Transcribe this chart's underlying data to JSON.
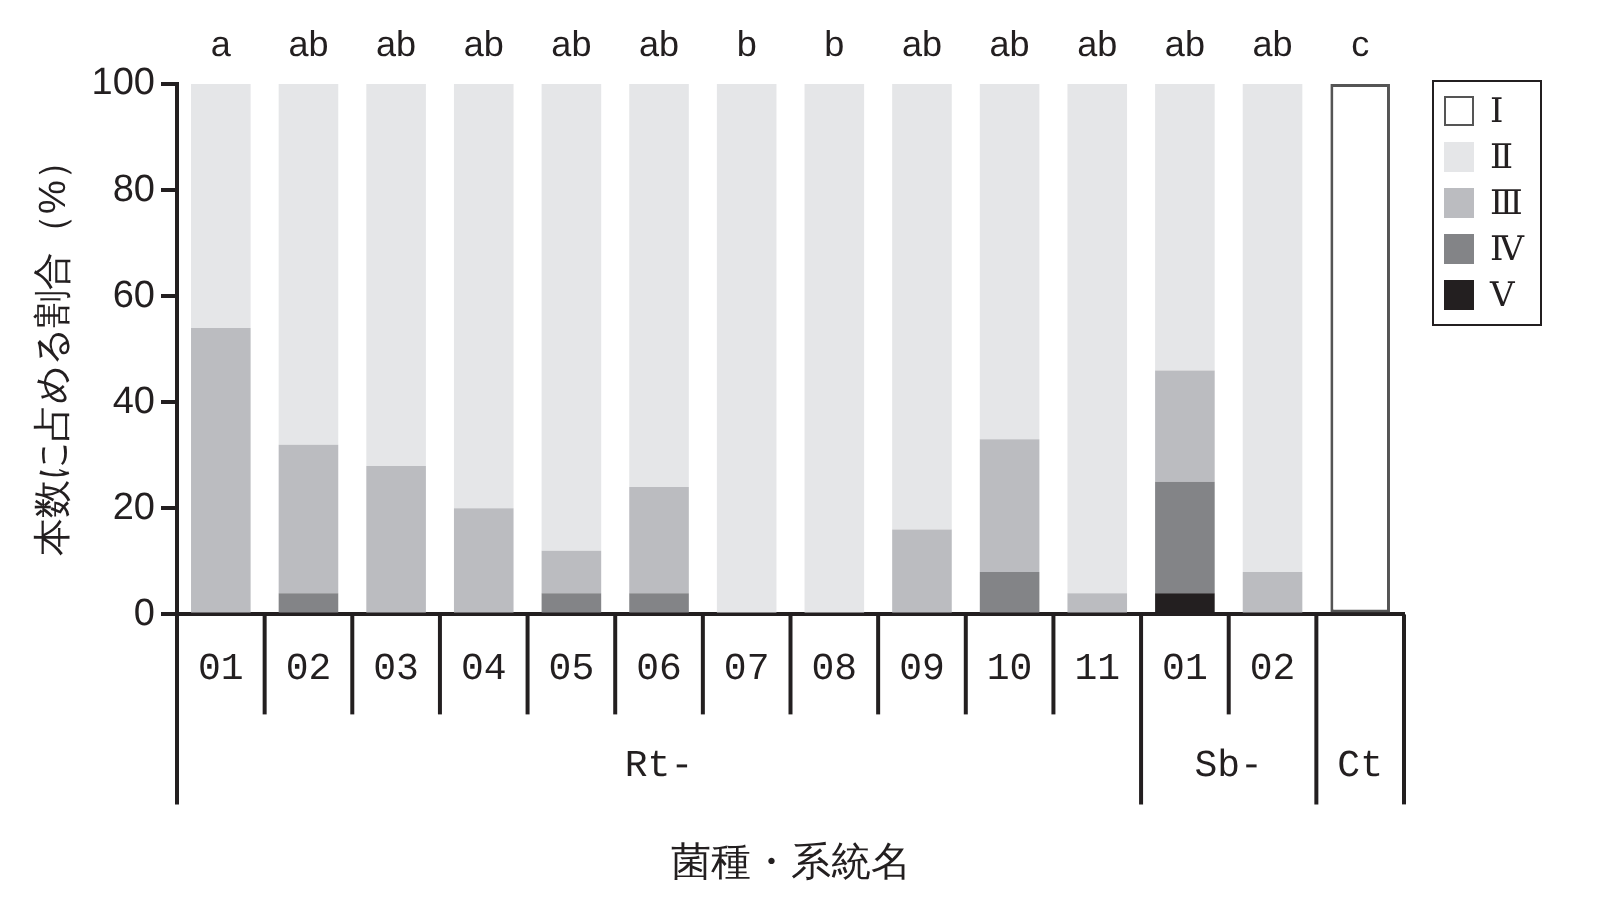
{
  "chart_data": {
    "type": "bar",
    "stacked": true,
    "ylabel": "本数に占める割合（%）",
    "xlabel": "菌種・系統名",
    "categories": [
      "01",
      "02",
      "03",
      "04",
      "05",
      "06",
      "07",
      "08",
      "09",
      "10",
      "11",
      "01",
      "02",
      null
    ],
    "series": [
      {
        "name": "Ⅴ",
        "color": "#231f20",
        "values": [
          0,
          0,
          0,
          0,
          0,
          0,
          0,
          0,
          0,
          0,
          0,
          4,
          0,
          0
        ]
      },
      {
        "name": "Ⅳ",
        "color": "#838487",
        "values": [
          0,
          4,
          0,
          0,
          4,
          4,
          0,
          0,
          0,
          8,
          0,
          21,
          0,
          0
        ]
      },
      {
        "name": "Ⅲ",
        "color": "#bbbcc0",
        "values": [
          54,
          28,
          28,
          20,
          8,
          20,
          0,
          0,
          16,
          25,
          4,
          21,
          8,
          0
        ]
      },
      {
        "name": "Ⅱ",
        "color": "#e5e6e8",
        "values": [
          46,
          68,
          72,
          80,
          88,
          76,
          100,
          100,
          84,
          67,
          96,
          54,
          92,
          0
        ]
      },
      {
        "name": "Ⅰ",
        "color": "#ffffff",
        "values": [
          0,
          0,
          0,
          0,
          0,
          0,
          0,
          0,
          0,
          0,
          0,
          0,
          0,
          100
        ]
      }
    ],
    "ylim": [
      0,
      100
    ],
    "yticks": [
      0,
      20,
      40,
      60,
      80,
      100
    ],
    "grid": false,
    "legend": "top right",
    "annotations": [
      "a",
      "ab",
      "ab",
      "ab",
      "ab",
      "ab",
      "b",
      "b",
      "ab",
      "ab",
      "ab",
      "ab",
      "ab",
      "c",
      "Rt-",
      "Sb-",
      "Ct"
    ]
  }
}
